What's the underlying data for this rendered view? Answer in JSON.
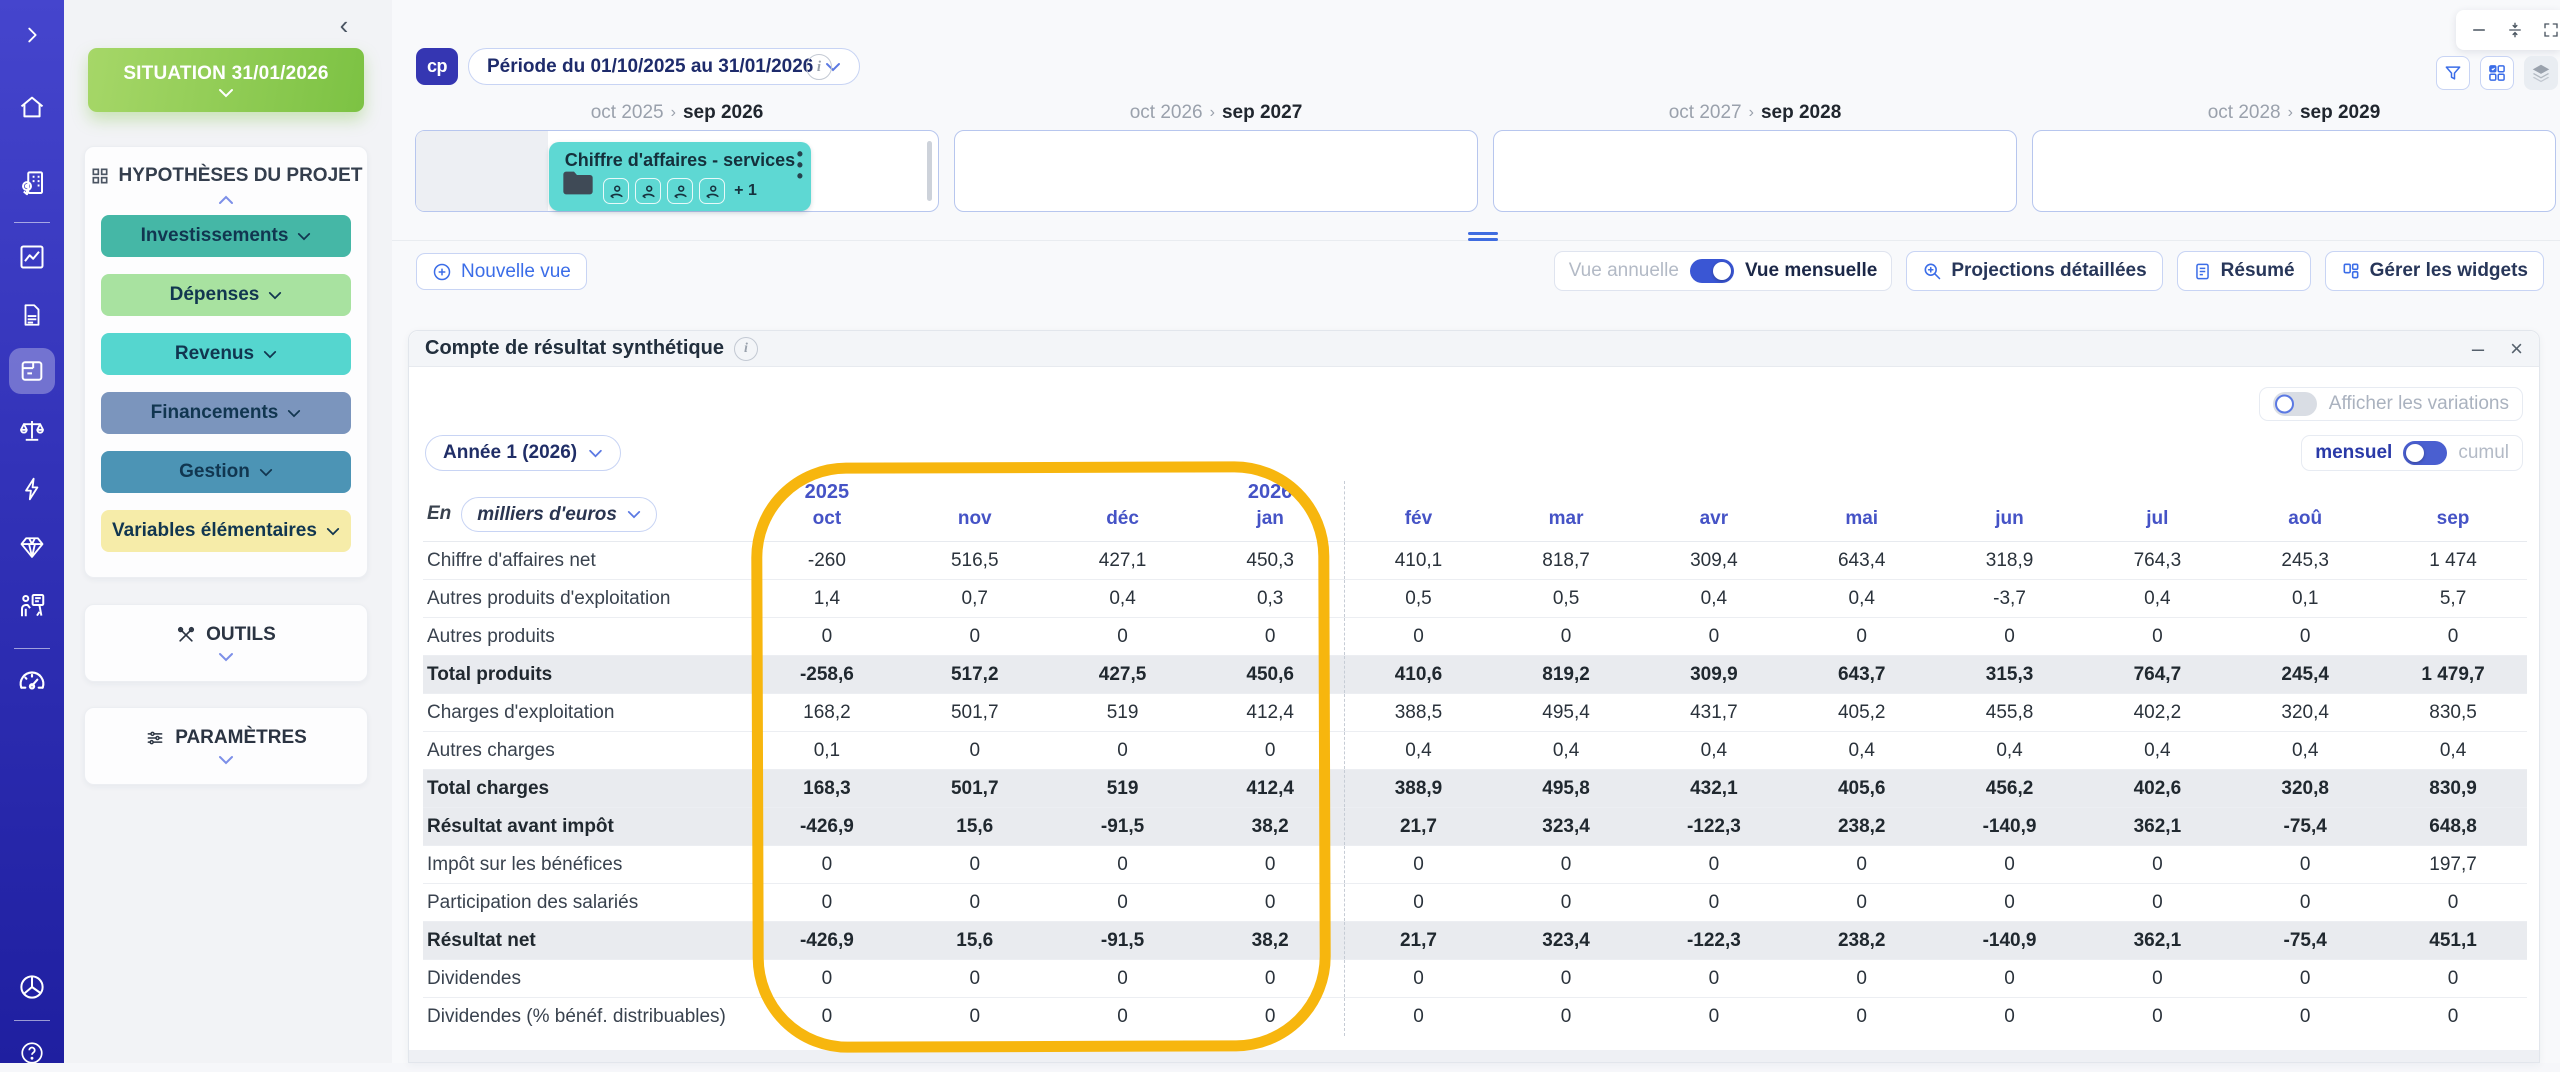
{
  "sidebar": {
    "icons": [
      "expand",
      "home",
      "company-location",
      "line-chart",
      "document",
      "budget",
      "scales",
      "lightning",
      "diamond",
      "training",
      "gauge",
      "pie-chart",
      "help"
    ],
    "selected": "budget"
  },
  "panel": {
    "situation_label": "SITUATION 31/01/2026",
    "hypotheses": {
      "title": "HYPOTHÈSES DU PROJET",
      "buttons": [
        {
          "label": "Investissements",
          "color": "#45b7a6"
        },
        {
          "label": "Dépenses",
          "color": "#a8e2a0"
        },
        {
          "label": "Revenus",
          "color": "#55d6cf"
        },
        {
          "label": "Financements",
          "color": "#7b95bd"
        },
        {
          "label": "Gestion",
          "color": "#4c94b5"
        },
        {
          "label": "Variables élémentaires",
          "color": "#f6eca9"
        }
      ]
    },
    "outils_label": "OUTILS",
    "parametres_label": "PARAMÈTRES"
  },
  "topbar": {
    "logo": "cp",
    "period_label": "Période du 01/10/2025 au 31/01/2026"
  },
  "timeline": {
    "separator": "›",
    "sections": [
      {
        "start": "oct 2025",
        "end": "sep 2026"
      },
      {
        "start": "oct 2026",
        "end": "sep 2027"
      },
      {
        "start": "oct 2027",
        "end": "sep 2028"
      },
      {
        "start": "oct 2028",
        "end": "sep 2029"
      }
    ],
    "card": {
      "title": "Chiffre d'affaires - services",
      "more": "+ 1"
    }
  },
  "toolbar": {
    "new_view": "Nouvelle vue",
    "annual": "Vue annuelle",
    "monthly": "Vue mensuelle",
    "projections": "Projections détaillées",
    "resume": "Résumé",
    "widgets": "Gérer les widgets"
  },
  "widget": {
    "title": "Compte de résultat synthétique",
    "variations_label": "Afficher les variations",
    "year_selector": "Année 1 (2026)",
    "unit_prefix": "En",
    "unit": "milliers d'euros",
    "mensuel": "mensuel",
    "cumul": "cumul",
    "minimize": "–",
    "close": "×"
  },
  "table": {
    "columns": [
      {
        "year": "2025",
        "month": "oct"
      },
      {
        "year": "",
        "month": "nov"
      },
      {
        "year": "",
        "month": "déc"
      },
      {
        "year": "2026",
        "month": "jan"
      },
      {
        "year": "",
        "month": "fév"
      },
      {
        "year": "",
        "month": "mar"
      },
      {
        "year": "",
        "month": "avr"
      },
      {
        "year": "",
        "month": "mai"
      },
      {
        "year": "",
        "month": "jun"
      },
      {
        "year": "",
        "month": "jul"
      },
      {
        "year": "",
        "month": "aoû"
      },
      {
        "year": "",
        "month": "sep"
      }
    ],
    "rows": [
      {
        "label": "Chiffre d'affaires net",
        "emphasis": false,
        "values": [
          "-260",
          "516,5",
          "427,1",
          "450,3",
          "410,1",
          "818,7",
          "309,4",
          "643,4",
          "318,9",
          "764,3",
          "245,3",
          "1 474"
        ]
      },
      {
        "label": "Autres produits d'exploitation",
        "emphasis": false,
        "values": [
          "1,4",
          "0,7",
          "0,4",
          "0,3",
          "0,5",
          "0,5",
          "0,4",
          "0,4",
          "-3,7",
          "0,4",
          "0,1",
          "5,7"
        ]
      },
      {
        "label": "Autres produits",
        "emphasis": false,
        "values": [
          "0",
          "0",
          "0",
          "0",
          "0",
          "0",
          "0",
          "0",
          "0",
          "0",
          "0",
          "0"
        ]
      },
      {
        "label": "Total produits",
        "emphasis": true,
        "values": [
          "-258,6",
          "517,2",
          "427,5",
          "450,6",
          "410,6",
          "819,2",
          "309,9",
          "643,7",
          "315,3",
          "764,7",
          "245,4",
          "1 479,7"
        ]
      },
      {
        "label": "Charges d'exploitation",
        "emphasis": false,
        "values": [
          "168,2",
          "501,7",
          "519",
          "412,4",
          "388,5",
          "495,4",
          "431,7",
          "405,2",
          "455,8",
          "402,2",
          "320,4",
          "830,5"
        ]
      },
      {
        "label": "Autres charges",
        "emphasis": false,
        "values": [
          "0,1",
          "0",
          "0",
          "0",
          "0,4",
          "0,4",
          "0,4",
          "0,4",
          "0,4",
          "0,4",
          "0,4",
          "0,4"
        ]
      },
      {
        "label": "Total charges",
        "emphasis": true,
        "values": [
          "168,3",
          "501,7",
          "519",
          "412,4",
          "388,9",
          "495,8",
          "432,1",
          "405,6",
          "456,2",
          "402,6",
          "320,8",
          "830,9"
        ]
      },
      {
        "label": "Résultat avant impôt",
        "emphasis": true,
        "values": [
          "-426,9",
          "15,6",
          "-91,5",
          "38,2",
          "21,7",
          "323,4",
          "-122,3",
          "238,2",
          "-140,9",
          "362,1",
          "-75,4",
          "648,8"
        ]
      },
      {
        "label": "Impôt sur les bénéfices",
        "emphasis": false,
        "values": [
          "0",
          "0",
          "0",
          "0",
          "0",
          "0",
          "0",
          "0",
          "0",
          "0",
          "0",
          "197,7"
        ]
      },
      {
        "label": "Participation des salariés",
        "emphasis": false,
        "values": [
          "0",
          "0",
          "0",
          "0",
          "0",
          "0",
          "0",
          "0",
          "0",
          "0",
          "0",
          "0"
        ]
      },
      {
        "label": "Résultat net",
        "emphasis": true,
        "values": [
          "-426,9",
          "15,6",
          "-91,5",
          "38,2",
          "21,7",
          "323,4",
          "-122,3",
          "238,2",
          "-140,9",
          "362,1",
          "-75,4",
          "451,1"
        ]
      },
      {
        "label": "Dividendes",
        "emphasis": false,
        "values": [
          "0",
          "0",
          "0",
          "0",
          "0",
          "0",
          "0",
          "0",
          "0",
          "0",
          "0",
          "0"
        ]
      },
      {
        "label": "Dividendes (% bénéf. distribuables)",
        "emphasis": false,
        "values": [
          "0",
          "0",
          "0",
          "0",
          "0",
          "0",
          "0",
          "0",
          "0",
          "0",
          "0",
          "0"
        ]
      }
    ],
    "dashed_separator_after_column": 4
  },
  "highlight": {
    "color": "#f7b60e"
  }
}
